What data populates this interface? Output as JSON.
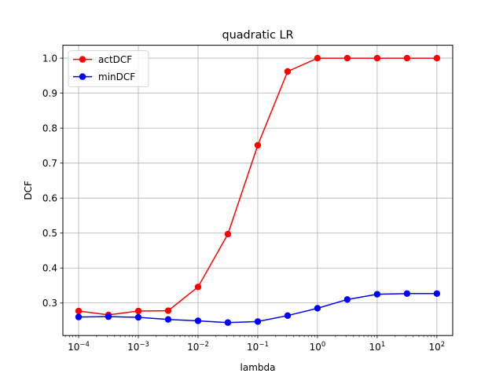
{
  "chart_data": {
    "type": "line",
    "title": "quadratic LR",
    "xlabel": "lambda",
    "ylabel": "DCF",
    "x_scale": "log",
    "x": [
      0.0001,
      0.000316,
      0.001,
      0.00316,
      0.01,
      0.0316,
      0.1,
      0.316,
      1,
      3.16,
      10,
      31.6,
      100
    ],
    "x_ticks": [
      {
        "value": 0.0001,
        "base": "10",
        "exp": "−4"
      },
      {
        "value": 0.001,
        "base": "10",
        "exp": "−3"
      },
      {
        "value": 0.01,
        "base": "10",
        "exp": "−2"
      },
      {
        "value": 0.1,
        "base": "10",
        "exp": "−1"
      },
      {
        "value": 1,
        "base": "10",
        "exp": "0"
      },
      {
        "value": 10,
        "base": "10",
        "exp": "1"
      },
      {
        "value": 100,
        "base": "10",
        "exp": "2"
      }
    ],
    "y_ticks": [
      "0.3",
      "0.4",
      "0.5",
      "0.6",
      "0.7",
      "0.8",
      "0.9",
      "1.0"
    ],
    "xlim": [
      5.45e-05,
      184
    ],
    "ylim": [
      0.207,
      1.037
    ],
    "grid": true,
    "legend_position": "top-left",
    "series": [
      {
        "name": "actDCF",
        "color": "#ff0000",
        "values": [
          0.277,
          0.266,
          0.277,
          0.278,
          0.346,
          0.497,
          0.751,
          0.962,
          1.0,
          1.0,
          1.0,
          1.0,
          1.0
        ]
      },
      {
        "name": "minDCF",
        "color": "#0000ff",
        "values": [
          0.26,
          0.261,
          0.259,
          0.253,
          0.249,
          0.244,
          0.247,
          0.264,
          0.285,
          0.31,
          0.325,
          0.327,
          0.327
        ]
      }
    ]
  }
}
